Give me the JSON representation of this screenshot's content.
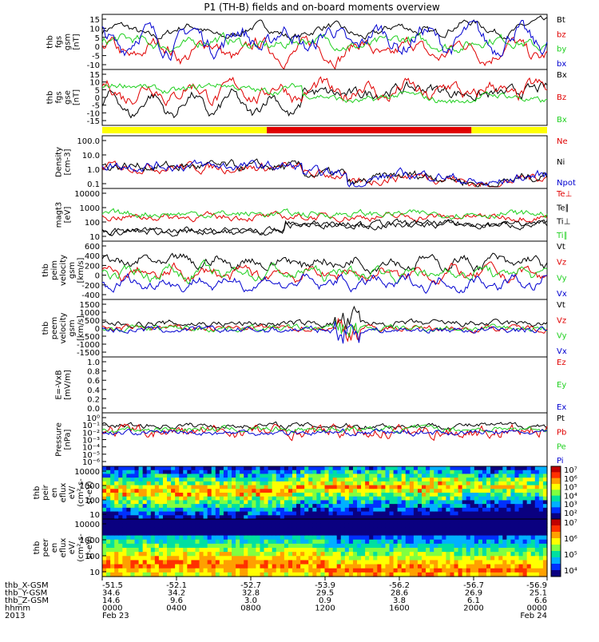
{
  "title": "P1 (TH-B) fields and on-board moments overview",
  "colors": {
    "black": "#000000",
    "red": "#e00000",
    "green": "#20d020",
    "blue": "#0000d0",
    "yellow": "#ffff00"
  },
  "chart_data": [
    {
      "type": "line",
      "id": "fgs",
      "ylabel": [
        "thb",
        "fgs",
        "gsm",
        "[nT]"
      ],
      "y_ticks": [
        "15",
        "10",
        "5",
        "0",
        "-5",
        "-10"
      ],
      "ylim": [
        -13,
        16
      ],
      "series": [
        {
          "name": "Bt",
          "color": "black"
        },
        {
          "name": "bz",
          "color": "red"
        },
        {
          "name": "by",
          "color": "green"
        },
        {
          "name": "bx",
          "color": "blue"
        }
      ]
    },
    {
      "type": "line",
      "id": "fgs_gse",
      "ylabel": [
        "thb",
        "fgs",
        "gse",
        "[nT]"
      ],
      "y_ticks": [
        "15",
        "10",
        "5",
        "0",
        "-5",
        "-10",
        "-15"
      ],
      "ylim": [
        -17,
        16
      ],
      "series": [
        {
          "name": "Bx",
          "color": "black"
        },
        {
          "name": "Bz",
          "color": "red"
        },
        {
          "name": "Bx",
          "color": "green"
        }
      ]
    },
    {
      "type": "bar",
      "id": "mode_bar",
      "segments": [
        {
          "from": 0,
          "to": 0.37,
          "color": "yellow"
        },
        {
          "from": 0.37,
          "to": 0.83,
          "color": "red"
        },
        {
          "from": 0.83,
          "to": 1,
          "color": "yellow"
        }
      ]
    },
    {
      "type": "line",
      "id": "density",
      "ylabel": [
        "Density",
        "[cm-3]"
      ],
      "log": true,
      "y_ticks": [
        "100.0",
        "10.0",
        "1.0",
        "0.1"
      ],
      "ylim": [
        0.03,
        200
      ],
      "series": [
        {
          "name": "Ne",
          "color": "red"
        },
        {
          "name": "Ni",
          "color": "black"
        },
        {
          "name": "Npot",
          "color": "blue"
        }
      ]
    },
    {
      "type": "line",
      "id": "temp",
      "ylabel": [
        "magt3",
        "[eV]"
      ],
      "log": true,
      "y_ticks": [
        "10000",
        "1000",
        "100",
        "10"
      ],
      "ylim": [
        6,
        20000
      ],
      "series": [
        {
          "name": "Te⊥",
          "color": "red"
        },
        {
          "name": "Te∥",
          "color": "black"
        },
        {
          "name": "Ti⊥",
          "color": "black"
        },
        {
          "name": "Ti∥",
          "color": "green"
        }
      ]
    },
    {
      "type": "line",
      "id": "peim",
      "ylabel": [
        "thb",
        "peim",
        "velocity",
        "gsm",
        "[km/s]"
      ],
      "y_ticks": [
        "600",
        "400",
        "200",
        "0",
        "-200",
        "-400"
      ],
      "ylim": [
        -450,
        620
      ],
      "series": [
        {
          "name": "Vt",
          "color": "black"
        },
        {
          "name": "Vz",
          "color": "red"
        },
        {
          "name": "Vy",
          "color": "green"
        },
        {
          "name": "Vx",
          "color": "blue"
        }
      ]
    },
    {
      "type": "line",
      "id": "peem",
      "ylabel": [
        "thb",
        "peem",
        "velocity",
        "gsm",
        "[km/s]"
      ],
      "y_ticks": [
        "1500",
        "1000",
        "500",
        "0",
        "-500",
        "-1000",
        "-1500"
      ],
      "ylim": [
        -1600,
        1600
      ],
      "series": [
        {
          "name": "Vt",
          "color": "black"
        },
        {
          "name": "Vz",
          "color": "red"
        },
        {
          "name": "Vy",
          "color": "green"
        },
        {
          "name": "Vx",
          "color": "blue"
        }
      ]
    },
    {
      "type": "line",
      "id": "efield",
      "ylabel": [
        "E=-VxB",
        "[mV/m]"
      ],
      "y_ticks": [
        "1.0",
        "0.8",
        "0.6",
        "0.4",
        "0.2",
        "0.0"
      ],
      "ylim": [
        0,
        1
      ],
      "series": [
        {
          "name": "Ez",
          "color": "red"
        },
        {
          "name": "Ey",
          "color": "green"
        },
        {
          "name": "Ex",
          "color": "blue"
        }
      ]
    },
    {
      "type": "line",
      "id": "pressure",
      "ylabel": [
        "Pressure",
        "[nPa]"
      ],
      "log": true,
      "y_ticks": [
        "10⁰",
        "10⁻¹",
        "10⁻²",
        "10⁻³",
        "10⁻⁴",
        "10⁻⁵",
        "10⁻⁶"
      ],
      "ylim": [
        1e-06,
        1.5
      ],
      "series": [
        {
          "name": "Pt",
          "color": "black"
        },
        {
          "name": "Pb",
          "color": "red"
        },
        {
          "name": "Pe",
          "color": "green"
        },
        {
          "name": "Pi",
          "color": "blue"
        }
      ]
    },
    {
      "type": "heatmap",
      "id": "peir",
      "ylabel": [
        "thb",
        "peir",
        "en",
        "eflux",
        "eV/",
        "(cm²-s-",
        "sr-eV)"
      ],
      "y_ticks": [
        "10000",
        "1000",
        "100",
        "10"
      ]
    },
    {
      "type": "heatmap",
      "id": "peer",
      "ylabel": [
        "thb",
        "peer",
        "en",
        "eflux",
        "eV/",
        "(cm²-s-",
        "sr-eV)"
      ],
      "y_ticks": [
        "10000",
        "1000",
        "100",
        "10"
      ]
    }
  ],
  "colorbar1": {
    "labels": [
      "10⁷",
      "10⁶",
      "10⁵",
      "10⁴",
      "10³",
      "10²"
    ]
  },
  "colorbar2": {
    "labels": [
      "10⁷",
      "10⁶",
      "10⁵",
      "10⁴"
    ]
  },
  "x_axis": {
    "rows": [
      {
        "label": "thb_X-GSM",
        "values": [
          "-51.5",
          "-52.1",
          "-52.7",
          "-53.9",
          "-56.2",
          "-56.7",
          "-56.9"
        ]
      },
      {
        "label": "thb_Y-GSM",
        "values": [
          "34.6",
          "34.2",
          "32.8",
          "29.5",
          "28.6",
          "26.9",
          "25.1"
        ]
      },
      {
        "label": "thb_Z-GSM",
        "values": [
          "14.6",
          "9.6",
          "3.0",
          "0.9",
          "3.8",
          "6.1",
          "6.6"
        ]
      },
      {
        "label": "hhmm",
        "values": [
          "0000",
          "0400",
          "0800",
          "1200",
          "1600",
          "2000",
          "0000"
        ]
      },
      {
        "label": "2013",
        "values": [
          "Feb 23",
          "",
          "",
          "",
          "",
          "",
          "Feb 24"
        ]
      }
    ]
  }
}
